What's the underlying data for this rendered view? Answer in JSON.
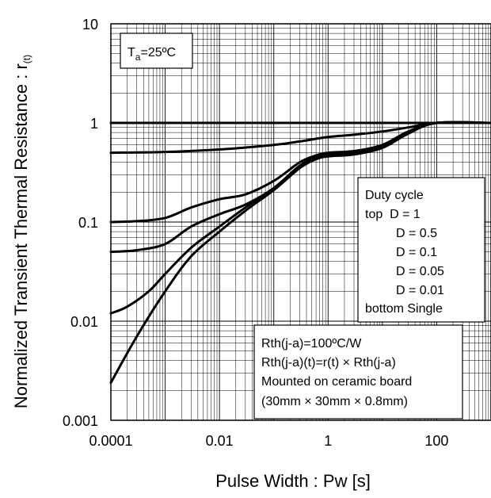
{
  "chart_data": {
    "type": "line",
    "x_scale": "log",
    "y_scale": "log",
    "xlim": [
      0.0001,
      1000
    ],
    "ylim": [
      0.001,
      10
    ],
    "xlabel": "Pulse Width : Pw [s]",
    "ylabel": "Normalized Transient Thermal Resistance : r",
    "ylabel_sub": "(t)",
    "x_ticks": [
      {
        "value": 0.0001,
        "label": "0.0001"
      },
      {
        "value": 0.01,
        "label": "0.01"
      },
      {
        "value": 1,
        "label": "1"
      },
      {
        "value": 100,
        "label": "100"
      }
    ],
    "y_ticks": [
      {
        "value": 10,
        "label": "10"
      },
      {
        "value": 1,
        "label": "1"
      },
      {
        "value": 0.1,
        "label": "0.1"
      },
      {
        "value": 0.01,
        "label": "0.01"
      },
      {
        "value": 0.001,
        "label": "0.001"
      }
    ],
    "grid": true,
    "condition": {
      "main": "T",
      "sub": "a",
      "rest": "=25ºC"
    },
    "legend_lines": [
      "Duty cycle",
      "top  D = 1",
      "D = 0.5",
      "D = 0.1",
      "D = 0.05",
      "D = 0.01",
      "bottom Single"
    ],
    "note_lines": [
      "Rth(j-a)=100ºC/W",
      "Rth(j-a)(t)=r(t) × Rth(j-a)",
      "Mounted on ceramic board",
      "(30mm × 30mm × 0.8mm)"
    ],
    "series": [
      {
        "name": "D = 1",
        "x": [
          0.0001,
          1000
        ],
        "y": [
          1,
          1
        ]
      },
      {
        "name": "D = 0.5",
        "x": [
          0.0001,
          0.001,
          0.01,
          0.1,
          0.3,
          1,
          3,
          10,
          30,
          100,
          1000
        ],
        "y": [
          0.5,
          0.51,
          0.54,
          0.6,
          0.65,
          0.72,
          0.76,
          0.82,
          0.9,
          1,
          1
        ]
      },
      {
        "name": "D = 0.1",
        "x": [
          0.0001,
          0.0003,
          0.001,
          0.003,
          0.01,
          0.03,
          0.1,
          0.3,
          0.6,
          1,
          3,
          10,
          30,
          100,
          1000
        ],
        "y": [
          0.1,
          0.102,
          0.11,
          0.14,
          0.17,
          0.19,
          0.26,
          0.4,
          0.47,
          0.5,
          0.52,
          0.6,
          0.82,
          1,
          1
        ]
      },
      {
        "name": "D = 0.05",
        "x": [
          0.0001,
          0.0003,
          0.001,
          0.003,
          0.01,
          0.03,
          0.1,
          0.3,
          0.6,
          1,
          3,
          10,
          30,
          100,
          1000
        ],
        "y": [
          0.05,
          0.052,
          0.06,
          0.09,
          0.12,
          0.15,
          0.22,
          0.37,
          0.45,
          0.48,
          0.5,
          0.58,
          0.8,
          1,
          1
        ]
      },
      {
        "name": "D = 0.01",
        "x": [
          0.0001,
          0.0002,
          0.0005,
          0.001,
          0.003,
          0.01,
          0.03,
          0.1,
          0.3,
          0.6,
          1,
          3,
          10,
          30,
          100,
          1000
        ],
        "y": [
          0.012,
          0.014,
          0.02,
          0.03,
          0.055,
          0.09,
          0.14,
          0.22,
          0.36,
          0.44,
          0.47,
          0.49,
          0.57,
          0.8,
          1,
          1
        ]
      },
      {
        "name": "Single",
        "x": [
          0.0001,
          0.0003,
          0.001,
          0.003,
          0.01,
          0.03,
          0.1,
          0.3,
          0.6,
          1,
          3,
          10,
          30,
          100,
          1000
        ],
        "y": [
          0.0024,
          0.007,
          0.02,
          0.045,
          0.08,
          0.13,
          0.21,
          0.35,
          0.43,
          0.46,
          0.48,
          0.56,
          0.78,
          1,
          1
        ]
      }
    ]
  }
}
